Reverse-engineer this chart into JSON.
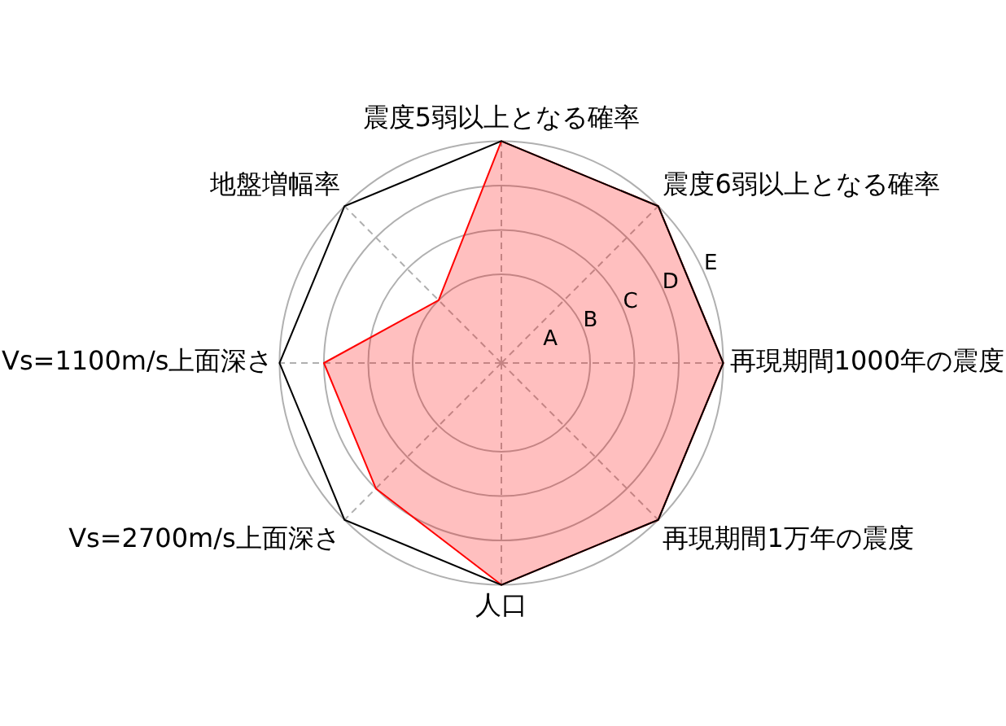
{
  "chart_data": {
    "type": "radar",
    "categories": [
      "震度5弱以上となる確率",
      "震度6弱以上となる確率",
      "再現期間1000年の震度",
      "再現期間1万年の震度",
      "人口",
      "Vs=2700m/s上面深さ",
      "Vs=1100m/s上面深さ",
      "地盤増幅率"
    ],
    "series": [
      {
        "color": "#ff0000",
        "values": [
          5,
          5,
          5,
          5,
          5,
          4,
          4,
          2
        ]
      }
    ],
    "ylim": [
      0,
      5
    ],
    "yticks": [
      {
        "value": 1,
        "label": "A"
      },
      {
        "value": 2,
        "label": "B"
      },
      {
        "value": 3,
        "label": "C"
      },
      {
        "value": 4,
        "label": "D"
      },
      {
        "value": 5,
        "label": "E"
      }
    ],
    "grid": true,
    "legend": false,
    "marker": "none",
    "line_style": "solid"
  }
}
